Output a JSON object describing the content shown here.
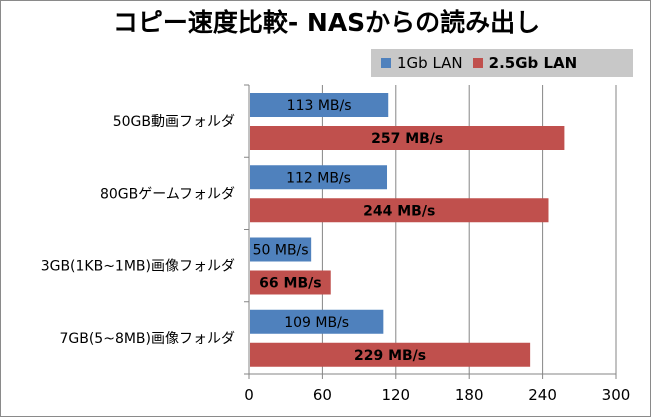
{
  "chart_data": {
    "type": "bar",
    "orientation": "horizontal",
    "title": "コピー速度比較- NASからの読み出し",
    "categories": [
      "50GB動画フォルダ",
      "80GBゲームフォルダ",
      "3GB(1KB~1MB)画像フォルダ",
      "7GB(5~8MB)画像フォルダ"
    ],
    "series": [
      {
        "name": "1Gb LAN",
        "color": "#4f81bd",
        "values": [
          113,
          112,
          50,
          109
        ],
        "labels": [
          "113 MB/s",
          "112 MB/s",
          "50 MB/s",
          "109 MB/s"
        ]
      },
      {
        "name": "2.5Gb LAN",
        "color": "#c0504d",
        "values": [
          257,
          244,
          66,
          229
        ],
        "labels": [
          "257 MB/s",
          "244 MB/s",
          "66 MB/s",
          "229 MB/s"
        ]
      }
    ],
    "xlim": [
      0,
      300
    ],
    "xticks": [
      "0",
      "60",
      "120",
      "180",
      "240",
      "300"
    ],
    "legend_position": "top-right",
    "grid": true
  }
}
